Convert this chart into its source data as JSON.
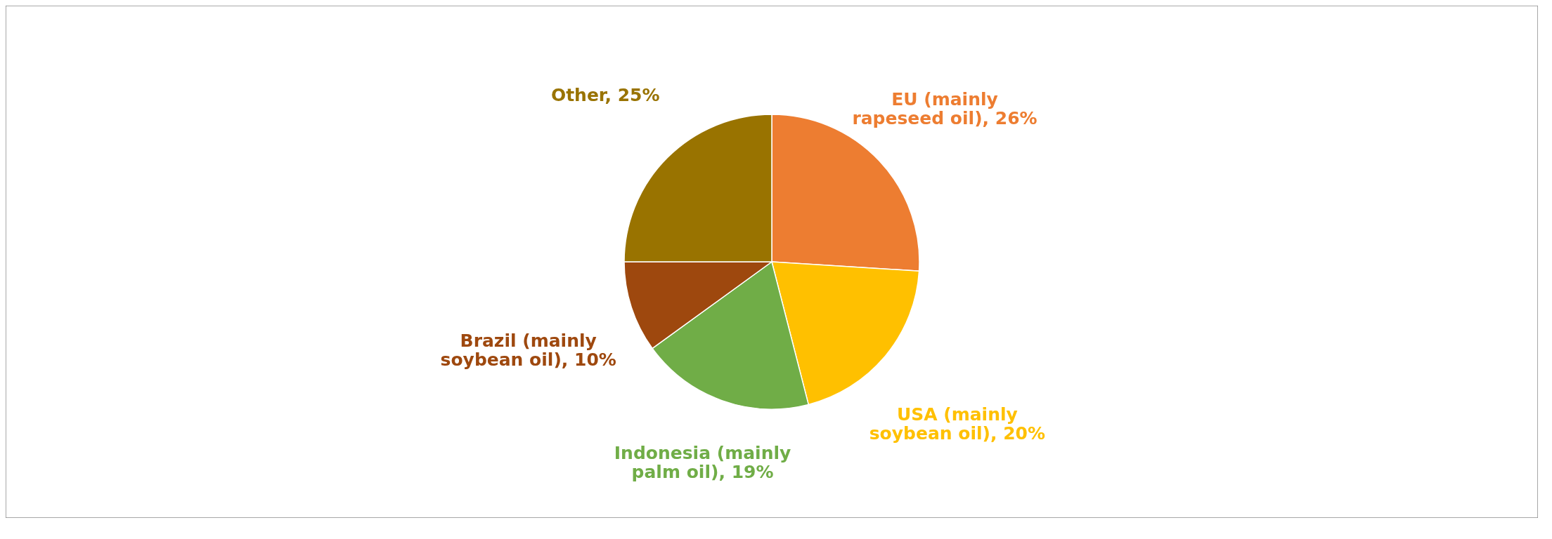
{
  "chart_data": {
    "type": "pie",
    "categories": [
      "EU (mainly rapeseed oil)",
      "USA (mainly soybean oil)",
      "Indonesia (mainly palm oil)",
      "Brazil (mainly soybean oil)",
      "Other"
    ],
    "values": [
      26,
      20,
      19,
      10,
      25
    ],
    "colors": [
      "#ed7d31",
      "#ffc000",
      "#70ad47",
      "#9e480e",
      "#997300"
    ],
    "value_labels": [
      "26%",
      "20%",
      "19%",
      "10%",
      "25%"
    ],
    "legend": false
  }
}
